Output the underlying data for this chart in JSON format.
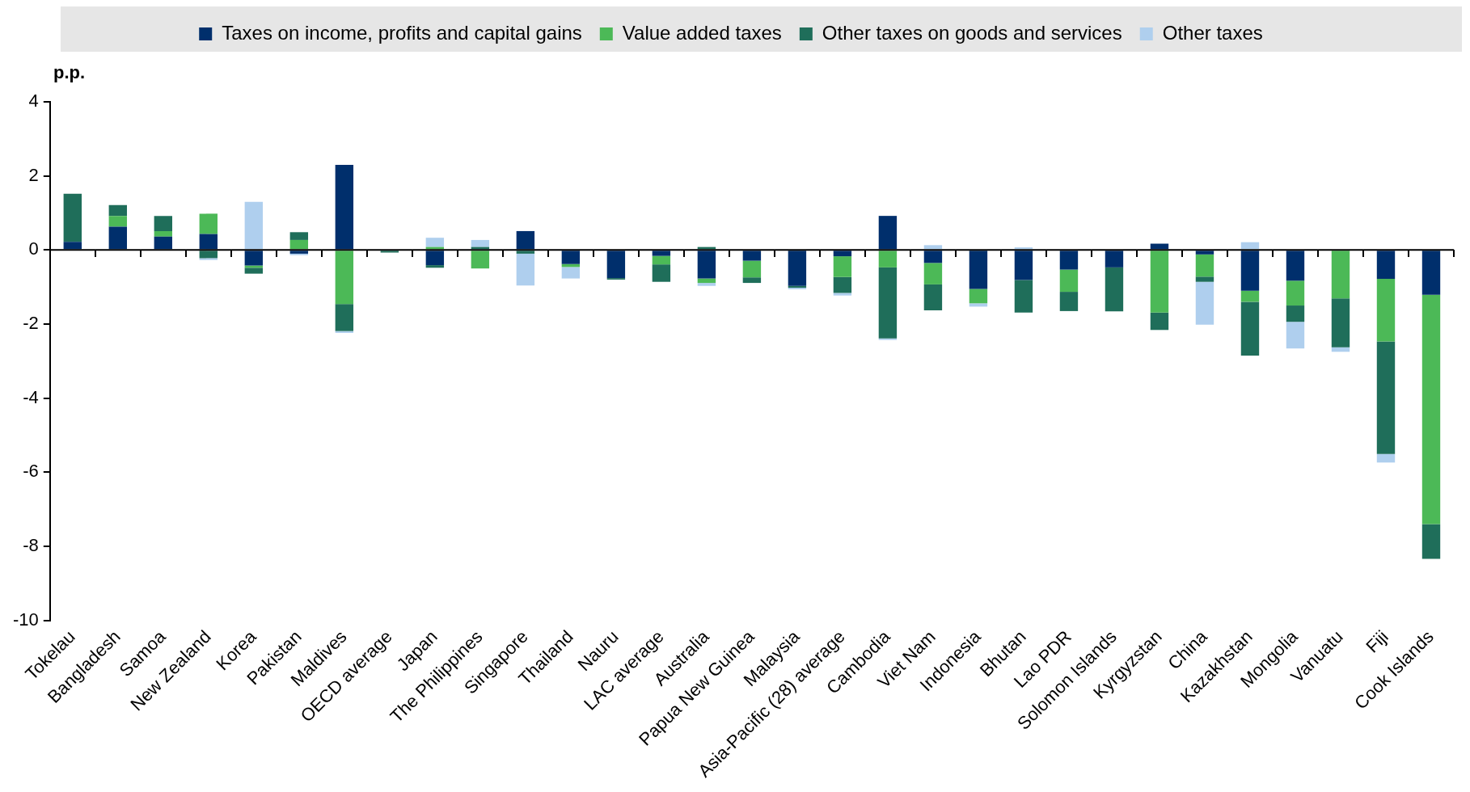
{
  "chart_data": {
    "type": "bar",
    "stacked": true,
    "ylabel": "p.p.",
    "legend": "top",
    "grid": false,
    "categories": [
      "Tokelau",
      "Bangladesh",
      "Samoa",
      "New Zealand",
      "Korea",
      "Pakistan",
      "Maldives",
      "OECD average",
      "Japan",
      "The Philippines",
      "Singapore",
      "Thailand",
      "Nauru",
      "LAC average",
      "Australia",
      "Papua New Guinea",
      "Malaysia",
      "Asia-Pacific (28) average",
      "Cambodia",
      "Viet Nam",
      "Indonesia",
      "Bhutan",
      "Lao PDR",
      "Solomon Islands",
      "Kyrgyzstan",
      "China",
      "Kazakhstan",
      "Mongolia",
      "Vanuatu",
      "Fiji",
      "Cook Islands"
    ],
    "ref_lines": [
      {
        "axis": "y",
        "value": 0,
        "color": "#000000",
        "line_style": "solid"
      }
    ],
    "ylim": [
      -10,
      4
    ],
    "yticks": [
      -10,
      -8,
      -6,
      -4,
      -2,
      0,
      2,
      4
    ],
    "series": [
      {
        "name": "Taxes on income, profits and capital gains",
        "color": "#002f6c",
        "values": [
          0.22,
          0.63,
          0.36,
          0.43,
          -0.42,
          -0.1,
          2.3,
          0,
          -0.41,
          0,
          0.51,
          -0.38,
          -0.76,
          -0.16,
          -0.77,
          -0.29,
          -0.97,
          -0.17,
          0.92,
          -0.35,
          -1.05,
          -0.81,
          -0.53,
          -0.47,
          0.17,
          -0.12,
          -1.1,
          -0.83,
          0,
          -0.78,
          -1.21
        ]
      },
      {
        "name": "Value added taxes",
        "color": "#4cb957",
        "values": [
          0,
          0.29,
          0.15,
          0.55,
          -0.06,
          0.27,
          -1.46,
          0,
          0.08,
          -0.5,
          0,
          -0.08,
          0,
          -0.23,
          -0.12,
          -0.45,
          0,
          -0.56,
          -0.47,
          -0.58,
          -0.39,
          0,
          -0.6,
          0,
          -1.69,
          -0.6,
          -0.3,
          -0.67,
          -1.31,
          -1.69,
          -6.19
        ]
      },
      {
        "name": "Other taxes on goods and services",
        "color": "#1f6e5a",
        "values": [
          1.3,
          0.29,
          0.41,
          -0.22,
          -0.16,
          0.21,
          -0.73,
          -0.07,
          -0.07,
          0.08,
          -0.1,
          0,
          -0.04,
          -0.47,
          0.08,
          -0.15,
          -0.05,
          -0.43,
          -1.92,
          -0.7,
          0,
          -0.88,
          -0.52,
          -1.19,
          -0.47,
          -0.14,
          -1.45,
          -0.44,
          -1.32,
          -3.04,
          -0.94
        ]
      },
      {
        "name": "Other taxes",
        "color": "#afcfee",
        "values": [
          0,
          0,
          0,
          -0.05,
          1.3,
          -0.04,
          -0.05,
          0,
          0.25,
          0.19,
          -0.86,
          -0.31,
          0,
          null,
          -0.08,
          0,
          -0.04,
          -0.07,
          -0.04,
          0.13,
          -0.09,
          0.07,
          0,
          null,
          0,
          -1.16,
          0.21,
          -0.72,
          -0.12,
          -0.23,
          0
        ]
      }
    ]
  }
}
